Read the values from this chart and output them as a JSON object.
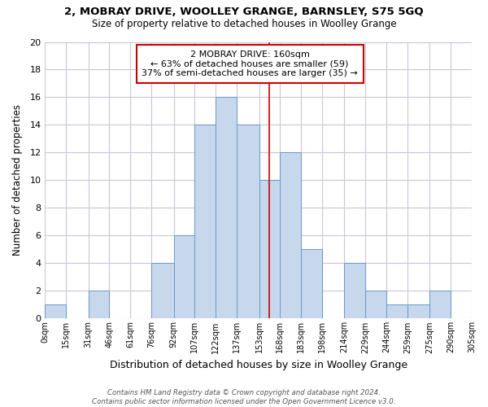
{
  "title": "2, MOBRAY DRIVE, WOOLLEY GRANGE, BARNSLEY, S75 5GQ",
  "subtitle": "Size of property relative to detached houses in Woolley Grange",
  "xlabel": "Distribution of detached houses by size in Woolley Grange",
  "ylabel": "Number of detached properties",
  "bin_edges": [
    0,
    15,
    31,
    46,
    61,
    76,
    92,
    107,
    122,
    137,
    153,
    168,
    183,
    198,
    214,
    229,
    244,
    259,
    275,
    290,
    305
  ],
  "bin_labels": [
    "0sqm",
    "15sqm",
    "31sqm",
    "46sqm",
    "61sqm",
    "76sqm",
    "92sqm",
    "107sqm",
    "122sqm",
    "137sqm",
    "153sqm",
    "168sqm",
    "183sqm",
    "198sqm",
    "214sqm",
    "229sqm",
    "244sqm",
    "259sqm",
    "275sqm",
    "290sqm",
    "305sqm"
  ],
  "counts": [
    1,
    0,
    2,
    0,
    0,
    4,
    6,
    14,
    16,
    14,
    10,
    12,
    5,
    0,
    4,
    2,
    1,
    1,
    2,
    0
  ],
  "bar_color": "#c8d8ec",
  "bar_edgecolor": "#6699cc",
  "vline_x": 160,
  "vline_color": "#cc0000",
  "ylim": [
    0,
    20
  ],
  "yticks": [
    0,
    2,
    4,
    6,
    8,
    10,
    12,
    14,
    16,
    18,
    20
  ],
  "annotation_title": "2 MOBRAY DRIVE: 160sqm",
  "annotation_line1": "← 63% of detached houses are smaller (59)",
  "annotation_line2": "37% of semi-detached houses are larger (35) →",
  "annotation_box_color": "#ffffff",
  "annotation_box_edgecolor": "#cc0000",
  "footer_line1": "Contains HM Land Registry data © Crown copyright and database right 2024.",
  "footer_line2": "Contains public sector information licensed under the Open Government Licence v3.0.",
  "background_color": "#ffffff",
  "grid_color": "#c8c8d8"
}
